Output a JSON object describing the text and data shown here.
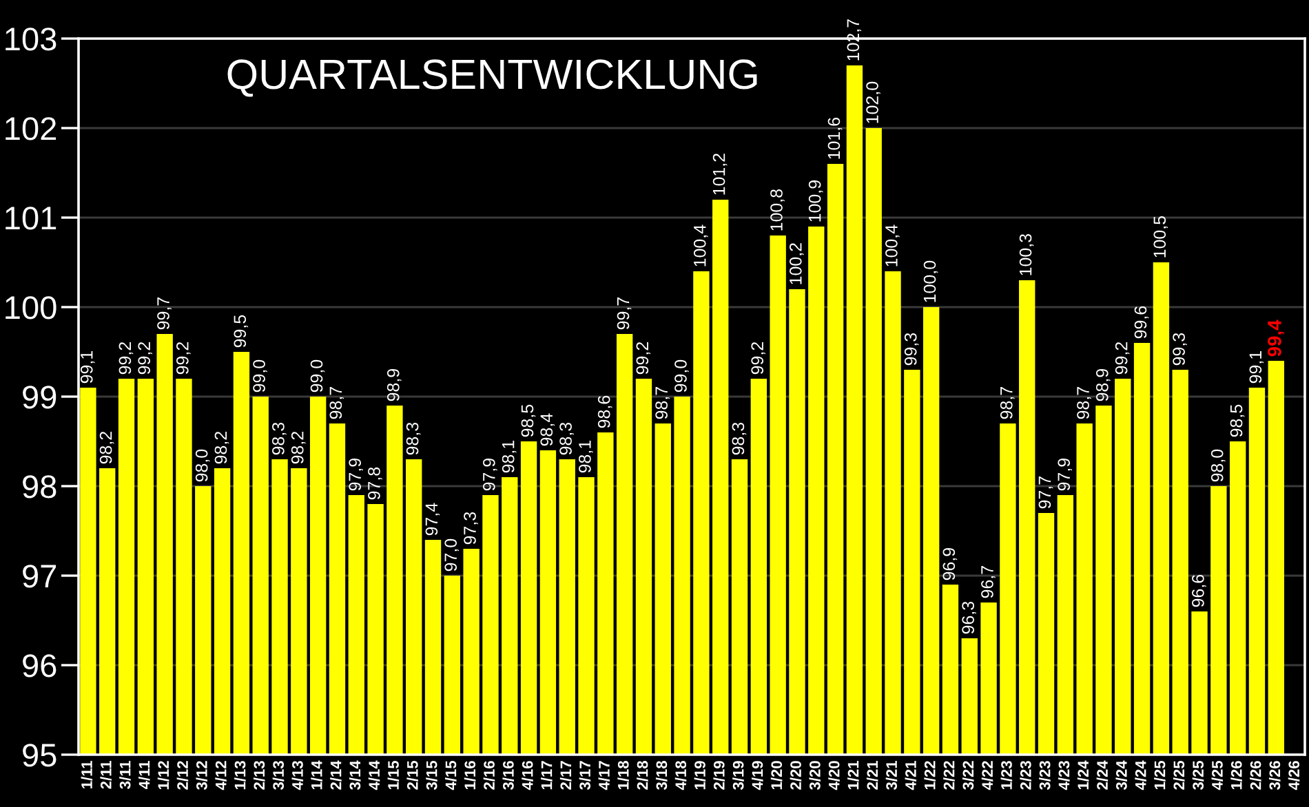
{
  "chart_data": {
    "type": "bar",
    "title": "QUARTALSENTWICKLUNG",
    "categories": [
      "1/11",
      "2/11",
      "3/11",
      "4/11",
      "1/12",
      "2/12",
      "3/12",
      "4/12",
      "1/13",
      "2/13",
      "3/13",
      "4/13",
      "1/14",
      "2/14",
      "3/14",
      "4/14",
      "1/15",
      "2/15",
      "3/15",
      "4/15",
      "1/16",
      "2/16",
      "3/16",
      "4/16",
      "1/17",
      "2/17",
      "3/17",
      "4/17",
      "1/18",
      "2/18",
      "3/18",
      "4/18",
      "1/19",
      "2/19",
      "3/19",
      "4/19",
      "1/20",
      "2/20",
      "3/20",
      "4/20",
      "1/21",
      "2/21",
      "3/21",
      "4/21",
      "1/22",
      "2/22",
      "3/22",
      "4/22",
      "1/23",
      "2/23",
      "3/23",
      "4/23",
      "1/24",
      "2/24",
      "3/24",
      "4/24",
      "1/25",
      "2/25",
      "3/25",
      "4/25",
      "1/26",
      "2/26",
      "3/26",
      "4/26"
    ],
    "values": [
      99.1,
      98.2,
      99.2,
      99.2,
      99.7,
      99.2,
      98.0,
      98.2,
      99.5,
      99.0,
      98.3,
      98.2,
      99.0,
      98.7,
      97.9,
      97.8,
      98.9,
      98.3,
      97.4,
      97.0,
      97.3,
      97.9,
      98.1,
      98.5,
      98.4,
      98.3,
      98.1,
      98.6,
      99.7,
      99.2,
      98.7,
      99.0,
      100.4,
      101.2,
      98.3,
      99.2,
      100.8,
      100.2,
      100.9,
      101.6,
      102.7,
      102.0,
      100.4,
      99.3,
      100.0,
      96.9,
      96.3,
      96.7,
      98.7,
      100.3,
      97.7,
      97.9,
      98.7,
      98.9,
      99.2,
      99.6,
      100.5,
      99.3,
      96.6,
      98.0,
      98.5,
      99.1,
      99.4,
      null
    ],
    "value_labels": [
      "99,1",
      "98,2",
      "99,2",
      "99,2",
      "99,7",
      "99,2",
      "98,0",
      "98,2",
      "99,5",
      "99,0",
      "98,3",
      "98,2",
      "99,0",
      "98,7",
      "97,9",
      "97,8",
      "98,9",
      "98,3",
      "97,4",
      "97,0",
      "97,3",
      "97,9",
      "98,1",
      "98,5",
      "98,4",
      "98,3",
      "98,1",
      "98,6",
      "99,7",
      "99,2",
      "98,7",
      "99,0",
      "100,4",
      "101,2",
      "98,3",
      "99,2",
      "100,8",
      "100,2",
      "100,9",
      "101,6",
      "102,7",
      "102,0",
      "100,4",
      "99,3",
      "100,0",
      "96,9",
      "96,3",
      "96,7",
      "98,7",
      "100,3",
      "97,7",
      "97,9",
      "98,7",
      "98,9",
      "99,2",
      "99,6",
      "100,5",
      "99,3",
      "96,6",
      "98,0",
      "98,5",
      "99,1",
      null,
      null
    ],
    "color": "#ffff00",
    "ylim": [
      95,
      103
    ],
    "yticks": [
      95,
      96,
      97,
      98,
      99,
      100,
      101,
      102,
      103
    ],
    "grid": "y",
    "annotations": [
      {
        "text": "99,4",
        "x": "3/26",
        "y": 99.4
      }
    ]
  }
}
